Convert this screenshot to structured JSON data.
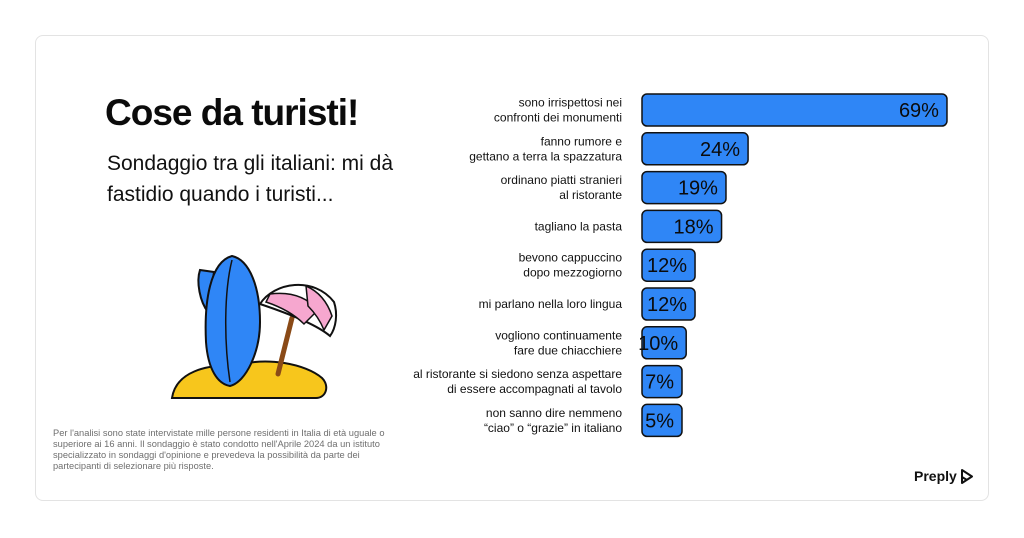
{
  "title": "Cose da turisti!",
  "subtitle": "Sondaggio tra gli italiani: mi dà fastidio quando i turisti...",
  "footnote": "Per l'analisi sono state intervistate mille persone residenti in Italia di età uguale o superiore ai 16 anni. Il sondaggio è stato condotto nell'Aprile 2024 da un istituto specializzato in sondaggi d'opinione e prevedeva la possibilità da parte dei partecipanti di selezionare più risposte.",
  "brand": {
    "name": "Preply",
    "icon": "preply-logo-icon"
  },
  "colors": {
    "bar": "#2f86f6",
    "bar_stroke": "#111111",
    "text": "#111111"
  },
  "chart_data": {
    "type": "bar",
    "orientation": "horizontal",
    "unit": "%",
    "xlim": [
      0,
      100
    ],
    "grid": false,
    "categories": [
      [
        "sono irrispettosi nei",
        "confronti dei monumenti"
      ],
      [
        "fanno rumore e",
        "gettano a terra la spazzatura"
      ],
      [
        "ordinano piatti stranieri",
        "al ristorante"
      ],
      [
        "tagliano la pasta"
      ],
      [
        "bevono cappuccino",
        "dopo mezzogiorno"
      ],
      [
        "mi parlano nella loro lingua"
      ],
      [
        "vogliono continuamente",
        "fare due chiacchiere"
      ],
      [
        "al ristorante si siedono senza aspettare",
        "di essere accompagnati al tavolo"
      ],
      [
        "non sanno dire nemmeno",
        "“ciao” o “grazie” in italiano"
      ]
    ],
    "values": [
      69,
      24,
      19,
      18,
      12,
      12,
      10,
      7,
      5
    ],
    "value_labels": [
      "69%",
      "24%",
      "19%",
      "18%",
      "12%",
      "12%",
      "10%",
      "7%",
      "5%"
    ]
  }
}
